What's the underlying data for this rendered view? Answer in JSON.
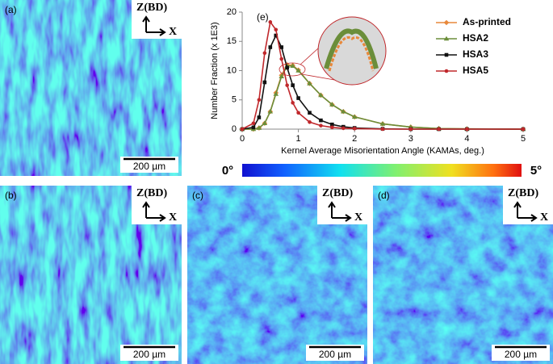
{
  "panels": [
    {
      "label": "(a)",
      "axis_z": "Z(BD)",
      "axis_x": "X",
      "scale_bar": "200 µm"
    },
    {
      "label": "(b)",
      "axis_z": "Z(BD)",
      "axis_x": "X",
      "scale_bar": "200 µm"
    },
    {
      "label": "(c)",
      "axis_z": "Z(BD)",
      "axis_x": "X",
      "scale_bar": "200 µm"
    },
    {
      "label": "(d)",
      "axis_z": "Z(BD)",
      "axis_x": "X",
      "scale_bar": "200 µm"
    }
  ],
  "chart_data": {
    "type": "line",
    "panel_label": "(e)",
    "xlabel": "Kernel Average Misorientation Angle (KAMAs, deg.)",
    "ylabel": "Number Fraction (x 1E3)",
    "x": [
      0,
      0.2,
      0.3,
      0.4,
      0.5,
      0.6,
      0.7,
      0.8,
      0.9,
      1.0,
      1.2,
      1.4,
      1.6,
      1.8,
      2.0,
      2.5,
      3,
      3.5,
      4,
      5
    ],
    "series": [
      {
        "name": "As-printed",
        "color": "#e8883a",
        "marker": "diamond",
        "values": [
          0,
          0,
          0.2,
          1,
          3,
          6.2,
          9.2,
          11,
          10.9,
          10.1,
          7.8,
          5.8,
          4.2,
          3.0,
          2.1,
          0.9,
          0.35,
          0.1,
          0.05,
          0
        ]
      },
      {
        "name": "HSA2",
        "color": "#6b8e3a",
        "marker": "triangle",
        "values": [
          0,
          0,
          0.2,
          1,
          3,
          6,
          9,
          10.8,
          10.8,
          10,
          7.8,
          5.8,
          4.2,
          3,
          2.1,
          0.9,
          0.35,
          0.1,
          0.05,
          0
        ]
      },
      {
        "name": "HSA3",
        "color": "#111111",
        "marker": "square",
        "values": [
          0,
          0.3,
          2,
          8,
          14,
          16,
          14,
          10.5,
          7.5,
          5.3,
          2.8,
          1.5,
          0.8,
          0.4,
          0.2,
          0.05,
          0,
          0,
          0,
          0
        ]
      },
      {
        "name": "HSA5",
        "color": "#c0282c",
        "marker": "circle",
        "values": [
          0,
          1,
          5,
          13,
          18.3,
          17,
          12,
          7.5,
          4.5,
          2.8,
          1.2,
          0.6,
          0.3,
          0.15,
          0.1,
          0,
          0,
          0,
          0,
          0
        ]
      }
    ],
    "xlim": [
      0,
      5
    ],
    "ylim": [
      0,
      20
    ],
    "xticks": [
      0,
      1,
      2,
      3,
      4,
      5
    ],
    "yticks": [
      0,
      5,
      10,
      15,
      20
    ],
    "legend": "upper right",
    "colorbar": {
      "min_label": "0°",
      "max_label": "5°"
    }
  }
}
